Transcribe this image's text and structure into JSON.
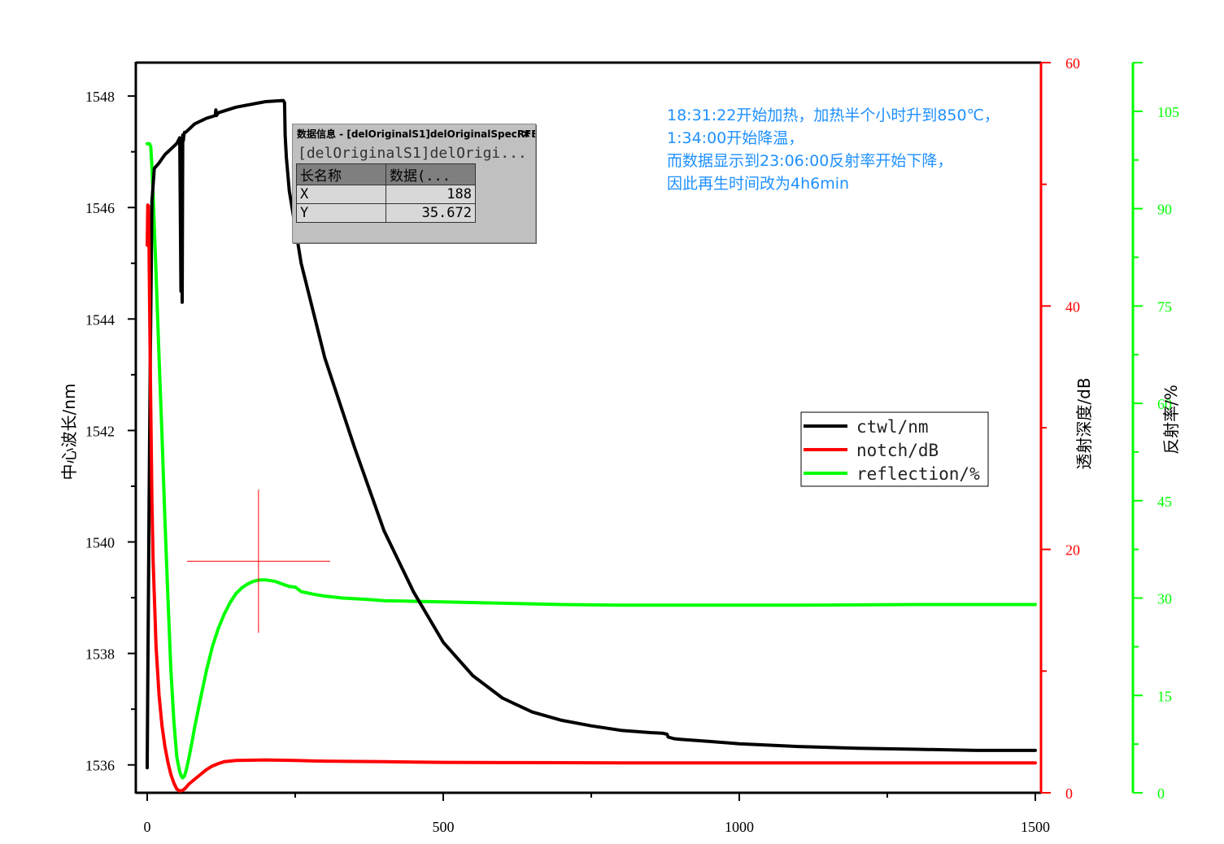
{
  "chart_data": {
    "type": "line",
    "xlabel": "",
    "xlim": [
      -20,
      1520
    ],
    "xticks": [
      0,
      500,
      1000,
      1500
    ],
    "axes": {
      "left": {
        "label": "中心波长/nm",
        "color": "#000000",
        "ylim": [
          1535.5,
          1548.6
        ],
        "ticks": [
          1536,
          1538,
          1540,
          1542,
          1544,
          1546,
          1548
        ]
      },
      "right1": {
        "label": "透射深度/dB",
        "color": "#ff0000",
        "ylim": [
          0,
          60
        ],
        "ticks": [
          0,
          20,
          40,
          60
        ]
      },
      "right2": {
        "label": "反射率/%",
        "color": "#00ff00",
        "ylim": [
          0,
          112.5
        ],
        "ticks": [
          0,
          15,
          30,
          45,
          60,
          75,
          90,
          105
        ]
      }
    },
    "series": [
      {
        "name": "ctwl/nm",
        "axis": "left",
        "color": "#000000",
        "x": [
          0,
          1,
          2,
          3,
          5,
          8,
          12,
          20,
          30,
          40,
          50,
          55,
          57,
          58,
          59,
          60,
          61,
          62,
          63,
          65,
          70,
          80,
          100,
          115,
          116,
          117,
          120,
          150,
          200,
          230,
          232,
          233,
          235,
          240,
          260,
          300,
          350,
          400,
          450,
          500,
          550,
          600,
          650,
          700,
          750,
          800,
          850,
          870,
          878,
          880,
          890,
          900,
          950,
          1000,
          1100,
          1200,
          1300,
          1400,
          1500
        ],
        "y": [
          1535.95,
          1537.5,
          1539.0,
          1540.5,
          1543.0,
          1546.1,
          1546.7,
          1546.8,
          1546.95,
          1547.05,
          1547.15,
          1547.25,
          1544.5,
          1547.2,
          1544.3,
          1547.3,
          1547.2,
          1547.3,
          1547.35,
          1547.35,
          1547.4,
          1547.5,
          1547.6,
          1547.65,
          1547.75,
          1547.65,
          1547.7,
          1547.8,
          1547.9,
          1547.92,
          1547.88,
          1547.3,
          1546.9,
          1546.3,
          1545.0,
          1543.3,
          1541.7,
          1540.2,
          1539.1,
          1538.2,
          1537.6,
          1537.2,
          1536.95,
          1536.8,
          1536.7,
          1536.62,
          1536.58,
          1536.57,
          1536.55,
          1536.5,
          1536.47,
          1536.46,
          1536.42,
          1536.38,
          1536.33,
          1536.3,
          1536.28,
          1536.26,
          1536.26
        ]
      },
      {
        "name": "notch/dB",
        "axis": "right1",
        "color": "#ff0000",
        "x": [
          0,
          1,
          2,
          3,
          5,
          8,
          10,
          15,
          20,
          25,
          30,
          35,
          40,
          45,
          50,
          55,
          60,
          65,
          70,
          80,
          90,
          100,
          110,
          120,
          130,
          150,
          200,
          250,
          300,
          400,
          500,
          600,
          700,
          800,
          900,
          1000,
          1100,
          1200,
          1300,
          1400,
          1500
        ],
        "y": [
          45,
          48.3,
          48.2,
          45.0,
          36.0,
          24.0,
          19.0,
          12.0,
          8.0,
          5.5,
          3.8,
          2.5,
          1.5,
          0.8,
          0.3,
          0.15,
          0.2,
          0.4,
          0.7,
          1.1,
          1.5,
          1.9,
          2.2,
          2.4,
          2.55,
          2.65,
          2.7,
          2.65,
          2.6,
          2.55,
          2.5,
          2.48,
          2.47,
          2.46,
          2.46,
          2.46,
          2.45,
          2.45,
          2.45,
          2.45,
          2.45
        ]
      },
      {
        "name": "reflection/%",
        "axis": "right2",
        "color": "#00ff00",
        "x": [
          0,
          2,
          4,
          6,
          8,
          10,
          15,
          20,
          25,
          30,
          35,
          40,
          45,
          50,
          55,
          58,
          60,
          63,
          66,
          70,
          75,
          80,
          90,
          100,
          110,
          120,
          130,
          140,
          150,
          160,
          170,
          180,
          190,
          200,
          215,
          230,
          240,
          250,
          260,
          280,
          300,
          330,
          370,
          400,
          500,
          600,
          700,
          800,
          900,
          1000,
          1100,
          1200,
          1300,
          1400,
          1500
        ],
        "y": [
          100,
          100,
          100,
          99.5,
          96.5,
          92.0,
          80.0,
          67.0,
          55.0,
          42.0,
          30.0,
          19.0,
          11.0,
          5.5,
          3.2,
          2.5,
          2.3,
          2.6,
          3.5,
          5.2,
          7.5,
          10.0,
          14.5,
          18.8,
          22.5,
          25.3,
          27.5,
          29.3,
          30.7,
          31.6,
          32.2,
          32.6,
          32.8,
          32.8,
          32.6,
          32.1,
          31.8,
          31.7,
          31.0,
          30.6,
          30.3,
          30.0,
          29.8,
          29.6,
          29.4,
          29.2,
          29.0,
          28.9,
          28.9,
          28.9,
          28.9,
          28.95,
          29.0,
          29.0,
          29.0
        ]
      }
    ],
    "legend": {
      "placement": "center-right",
      "entries": [
        "ctwl/nm",
        "notch/dB",
        "reflection/%"
      ]
    },
    "crosshair": {
      "x": 188,
      "y": 35.672
    },
    "annotations": [
      "18:31:22开始加热，加热半个小时升到850℃，",
      "1:34:00开始降温，",
      "而数据显示到23:06:00反射率开始下降，",
      "因此再生时间改为4h6min"
    ],
    "grid": false
  },
  "note": {
    "line1": "18:31:22开始加热，加热半个小时升到850℃，",
    "line2": "1:34:00开始降温，",
    "line3": "而数据显示到23:06:00反射率开始下降，",
    "line4": "因此再生时间改为4h6min"
  },
  "data_info": {
    "title": "数据信息 - [delOriginalS1]delOriginalSpecRFBG-T...",
    "close": "×",
    "subtitle": "[delOriginalS1]delOrigi...",
    "header_name": "长名称",
    "header_data": "数据(...",
    "rows": [
      {
        "name": "X",
        "value": "188"
      },
      {
        "name": "Y",
        "value": "35.672"
      }
    ]
  }
}
